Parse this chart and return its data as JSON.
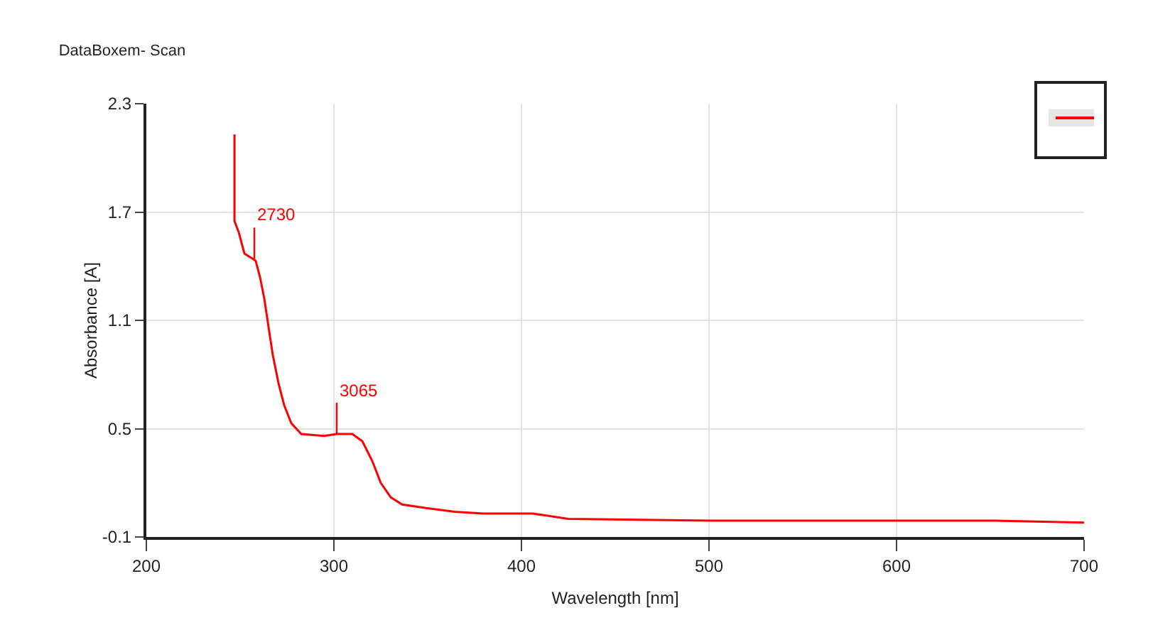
{
  "chart_data": {
    "type": "line",
    "title": "DataBoxem- Scan",
    "xlabel": "Wavelength [nm]",
    "ylabel": "Absorbance [A]",
    "x": [
      247.0,
      247.0,
      249.2,
      252.3,
      256.8,
      258.3,
      260.6,
      262.9,
      265.2,
      267.4,
      270.5,
      273.5,
      277.3,
      282.6,
      294.7,
      301.5,
      309.8,
      315.2,
      320.5,
      325.0,
      330.3,
      336.4,
      349.2,
      364.4,
      379.5,
      406.0,
      425.0,
      500.8,
      591.7,
      652.3,
      700.0
    ],
    "series": [
      {
        "color": "#ff0000",
        "values": [
          2.13,
          1.65,
          1.59,
          1.47,
          1.44,
          1.43,
          1.34,
          1.22,
          1.06,
          0.91,
          0.75,
          0.63,
          0.53,
          0.47,
          0.46,
          0.47,
          0.47,
          0.43,
          0.32,
          0.2,
          0.12,
          0.08,
          0.06,
          0.04,
          0.03,
          0.03,
          0.0,
          -0.01,
          -0.01,
          -0.01,
          -0.02
        ]
      }
    ],
    "xlim": [
      200,
      700
    ],
    "xticks": [
      200,
      300,
      400,
      500,
      600,
      700
    ],
    "ylim": [
      -0.1,
      2.3
    ],
    "yticks": [
      2.3,
      1.7,
      1.1,
      0.5,
      -0.1
    ],
    "annotations": [
      {
        "text": "2730",
        "x": 257.6,
        "y": 1.44
      },
      {
        "text": "3065",
        "x": 301.5,
        "y": 0.47
      }
    ],
    "grid": true,
    "line_style": "solid",
    "marker": "none"
  }
}
